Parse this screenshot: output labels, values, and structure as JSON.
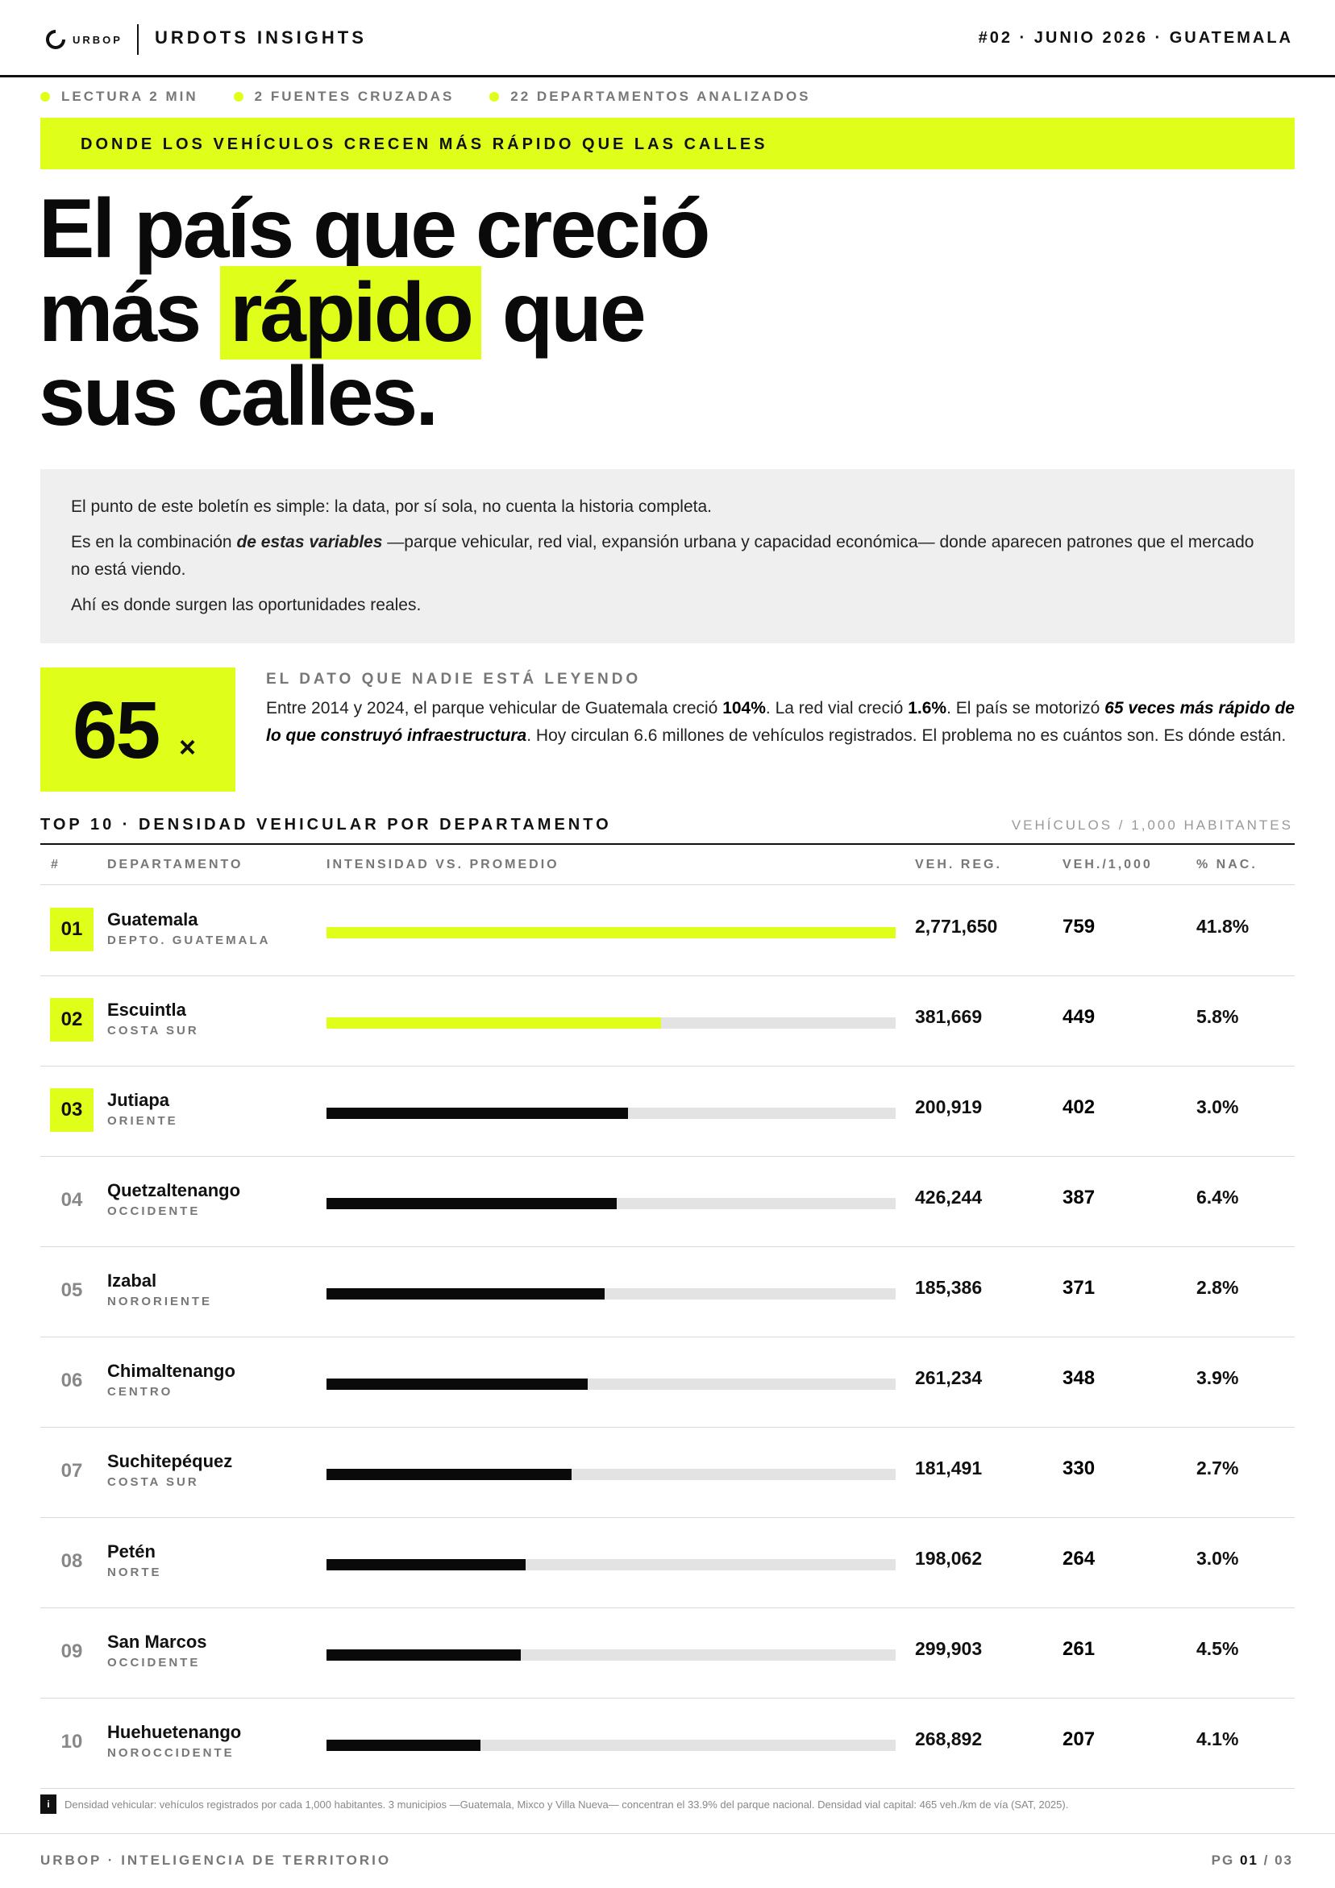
{
  "header": {
    "logo_text": "URBOP",
    "title": "URDOTS INSIGHTS",
    "issue": "#02 · JUNIO 2026 · GUATEMALA"
  },
  "meta": [
    "LECTURA 2 MIN",
    "2 FUENTES CRUZADAS",
    "22 DEPARTAMENTOS ANALIZADOS"
  ],
  "kicker": "DONDE LOS VEHÍCULOS CRECEN MÁS RÁPIDO QUE LAS CALLES",
  "headline": {
    "line1": "El país que creció",
    "line2_a": "más",
    "line2_highlight": "rápido",
    "line2_b": "que",
    "line3": "sus calles."
  },
  "intro": {
    "p1": "El punto de este boletín es simple: la data, por sí sola, no cuenta la historia completa.",
    "p2_a": "Es en la combinación",
    "p2_bold": "de estas variables",
    "p2_b": "—parque vehicular, red vial, expansión urbana y capacidad económica— donde aparecen patrones que el mercado no está viendo.",
    "p3": "Ahí es donde surgen las oportunidades reales."
  },
  "stat": {
    "number": "65",
    "suffix": "×",
    "label": "EL DATO QUE NADIE ESTÁ LEYENDO",
    "t1": "Entre 2014 y 2024, el parque vehicular de Guatemala creció",
    "b1": "104%",
    "t2": ". La red vial creció",
    "b2": "1.6%",
    "t3": ". El país se motorizó",
    "emph": "65 veces más rápido de lo que construyó infraestructura",
    "t4": ". Hoy circulan 6.6 millones de vehículos registrados. El problema no es cuántos son. Es dónde están."
  },
  "table": {
    "title": "TOP 10 · DENSIDAD VEHICULAR POR DEPARTAMENTO",
    "unit": "VEHÍCULOS / 1,000 HABITANTES",
    "columns": {
      "rank": "#",
      "dept": "DEPARTAMENTO",
      "bar": "INTENSIDAD VS. PROMEDIO",
      "veh": "VEH. REG.",
      "dens": "VEH./1,000",
      "pct": "% NAC."
    },
    "rows": [
      {
        "rank": "01",
        "name": "Guatemala",
        "region": "DEPTO. GUATEMALA",
        "veh": "2,771,650",
        "dens": "759",
        "pct": "41.8%",
        "intensity": 1.0,
        "lime": true
      },
      {
        "rank": "02",
        "name": "Escuintla",
        "region": "COSTA SUR",
        "veh": "381,669",
        "dens": "449",
        "pct": "5.8%",
        "intensity": 0.588,
        "lime": true
      },
      {
        "rank": "03",
        "name": "Jutiapa",
        "region": "ORIENTE",
        "veh": "200,919",
        "dens": "402",
        "pct": "3.0%",
        "intensity": 0.53,
        "lime": false
      },
      {
        "rank": "04",
        "name": "Quetzaltenango",
        "region": "OCCIDENTE",
        "veh": "426,244",
        "dens": "387",
        "pct": "6.4%",
        "intensity": 0.51,
        "lime": false
      },
      {
        "rank": "05",
        "name": "Izabal",
        "region": "NORORIENTE",
        "veh": "185,386",
        "dens": "371",
        "pct": "2.8%",
        "intensity": 0.489,
        "lime": false
      },
      {
        "rank": "06",
        "name": "Chimaltenango",
        "region": "CENTRO",
        "veh": "261,234",
        "dens": "348",
        "pct": "3.9%",
        "intensity": 0.459,
        "lime": false
      },
      {
        "rank": "07",
        "name": "Suchitepéquez",
        "region": "COSTA SUR",
        "veh": "181,491",
        "dens": "330",
        "pct": "2.7%",
        "intensity": 0.43,
        "lime": false
      },
      {
        "rank": "08",
        "name": "Petén",
        "region": "NORTE",
        "veh": "198,062",
        "dens": "264",
        "pct": "3.0%",
        "intensity": 0.35,
        "lime": false
      },
      {
        "rank": "09",
        "name": "San Marcos",
        "region": "OCCIDENTE",
        "veh": "299,903",
        "dens": "261",
        "pct": "4.5%",
        "intensity": 0.342,
        "lime": false
      },
      {
        "rank": "10",
        "name": "Huehuetenango",
        "region": "NOROCCIDENTE",
        "veh": "268,892",
        "dens": "207",
        "pct": "4.1%",
        "intensity": 0.271,
        "lime": false
      }
    ]
  },
  "note": {
    "icon": "i",
    "text": "Densidad vehicular: vehículos registrados por cada 1,000 habitantes. 3 municipios —Guatemala, Mixco y Villa Nueva— concentran el 33.9% del parque nacional. Densidad vial capital: 465 veh./km de vía (SAT, 2025)."
  },
  "footer": {
    "left": "URBOP · INTELIGENCIA DE TERRITORIO",
    "page_prefix": "PG",
    "page_current": "01",
    "page_sep": "/",
    "page_total": "03"
  },
  "colors": {
    "accent": "#dfff1a",
    "bar_dark": "#0a0a0a",
    "track": "#e3e3e3"
  }
}
